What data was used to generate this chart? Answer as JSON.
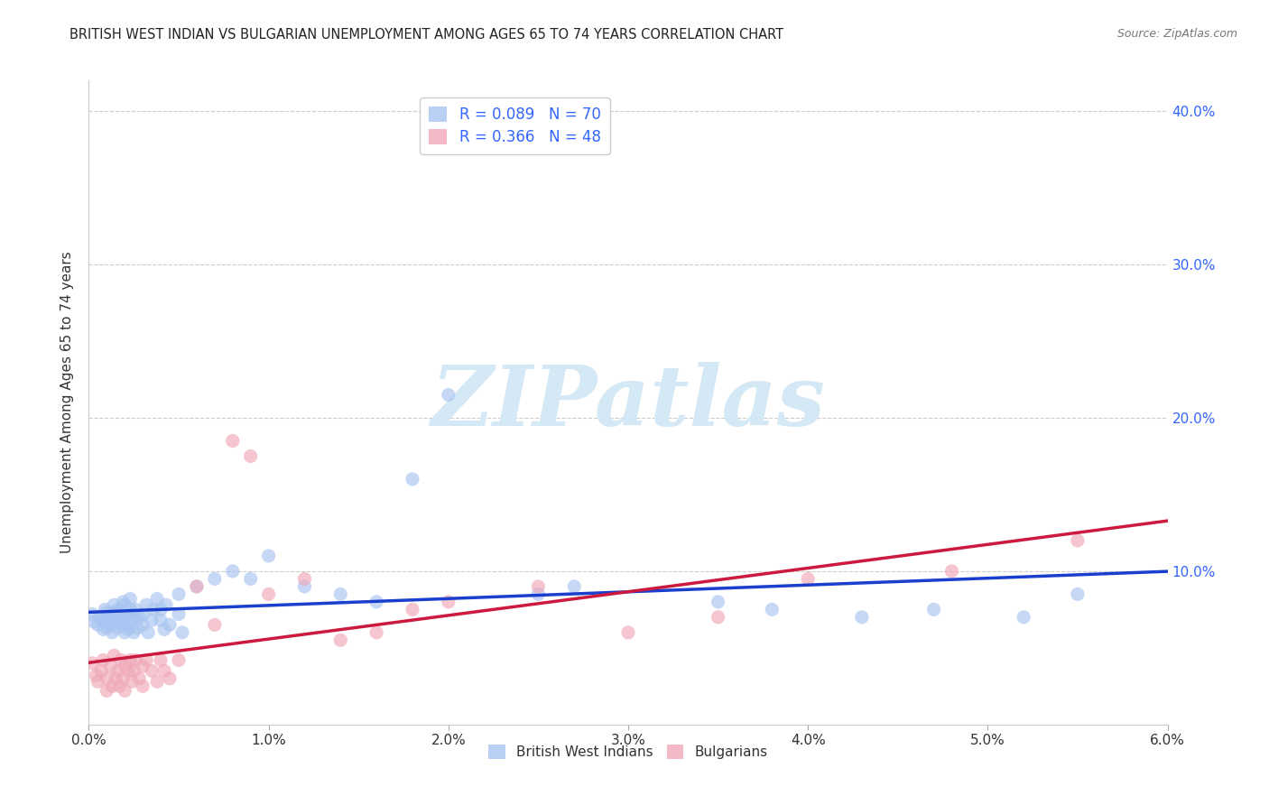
{
  "title": "BRITISH WEST INDIAN VS BULGARIAN UNEMPLOYMENT AMONG AGES 65 TO 74 YEARS CORRELATION CHART",
  "source": "Source: ZipAtlas.com",
  "ylabel": "Unemployment Among Ages 65 to 74 years",
  "xlim": [
    0.0,
    0.06
  ],
  "ylim": [
    0.0,
    0.42
  ],
  "x_ticks": [
    0.0,
    0.01,
    0.02,
    0.03,
    0.04,
    0.05,
    0.06
  ],
  "x_tick_labels": [
    "0.0%",
    "1.0%",
    "2.0%",
    "3.0%",
    "4.0%",
    "5.0%",
    "6.0%"
  ],
  "y_ticks_right": [
    0.1,
    0.2,
    0.3,
    0.4
  ],
  "y_tick_labels_right": [
    "10.0%",
    "20.0%",
    "30.0%",
    "40.0%"
  ],
  "r_bwi": 0.089,
  "n_bwi": 70,
  "r_bulg": 0.366,
  "n_bulg": 48,
  "bwi_color": "#a8c4f0",
  "bulg_color": "#f0a8b8",
  "bwi_line_color": "#1a3fcc",
  "bulg_line_color": "#cc1a3f",
  "watermark_text": "ZIPatlas",
  "watermark_color": "#d5e8f5",
  "bwi_scatter_x": [
    0.0002,
    0.0003,
    0.0005,
    0.0006,
    0.0008,
    0.0008,
    0.0009,
    0.001,
    0.001,
    0.001,
    0.0012,
    0.0012,
    0.0013,
    0.0014,
    0.0014,
    0.0015,
    0.0015,
    0.0016,
    0.0016,
    0.0017,
    0.0018,
    0.0018,
    0.0019,
    0.002,
    0.002,
    0.002,
    0.002,
    0.0022,
    0.0022,
    0.0023,
    0.0023,
    0.0024,
    0.0025,
    0.0025,
    0.0026,
    0.0027,
    0.0028,
    0.003,
    0.003,
    0.0032,
    0.0033,
    0.0035,
    0.0036,
    0.0038,
    0.004,
    0.004,
    0.0042,
    0.0043,
    0.0045,
    0.005,
    0.005,
    0.0052,
    0.006,
    0.007,
    0.008,
    0.009,
    0.01,
    0.012,
    0.014,
    0.016,
    0.018,
    0.02,
    0.025,
    0.027,
    0.035,
    0.038,
    0.043,
    0.047,
    0.052,
    0.055
  ],
  "bwi_scatter_y": [
    0.072,
    0.067,
    0.065,
    0.07,
    0.068,
    0.062,
    0.075,
    0.063,
    0.068,
    0.073,
    0.071,
    0.065,
    0.06,
    0.072,
    0.078,
    0.067,
    0.074,
    0.063,
    0.069,
    0.075,
    0.07,
    0.065,
    0.08,
    0.06,
    0.065,
    0.07,
    0.078,
    0.062,
    0.068,
    0.075,
    0.082,
    0.072,
    0.06,
    0.068,
    0.075,
    0.063,
    0.07,
    0.065,
    0.072,
    0.078,
    0.06,
    0.068,
    0.075,
    0.082,
    0.068,
    0.075,
    0.062,
    0.078,
    0.065,
    0.072,
    0.085,
    0.06,
    0.09,
    0.095,
    0.1,
    0.095,
    0.11,
    0.09,
    0.085,
    0.08,
    0.16,
    0.215,
    0.085,
    0.09,
    0.08,
    0.075,
    0.07,
    0.075,
    0.07,
    0.085
  ],
  "bulg_scatter_x": [
    0.0002,
    0.0004,
    0.0005,
    0.0007,
    0.0008,
    0.001,
    0.001,
    0.0012,
    0.0013,
    0.0014,
    0.0015,
    0.0016,
    0.0017,
    0.0018,
    0.0019,
    0.002,
    0.002,
    0.0022,
    0.0023,
    0.0024,
    0.0025,
    0.0026,
    0.0028,
    0.003,
    0.003,
    0.0032,
    0.0035,
    0.0038,
    0.004,
    0.0042,
    0.0045,
    0.005,
    0.006,
    0.007,
    0.008,
    0.009,
    0.01,
    0.012,
    0.014,
    0.016,
    0.018,
    0.02,
    0.025,
    0.03,
    0.035,
    0.04,
    0.048,
    0.055
  ],
  "bulg_scatter_y": [
    0.04,
    0.032,
    0.028,
    0.035,
    0.042,
    0.03,
    0.022,
    0.038,
    0.025,
    0.045,
    0.03,
    0.035,
    0.025,
    0.042,
    0.03,
    0.038,
    0.022,
    0.035,
    0.042,
    0.028,
    0.035,
    0.042,
    0.03,
    0.038,
    0.025,
    0.042,
    0.035,
    0.028,
    0.042,
    0.035,
    0.03,
    0.042,
    0.09,
    0.065,
    0.185,
    0.175,
    0.085,
    0.095,
    0.055,
    0.06,
    0.075,
    0.08,
    0.09,
    0.06,
    0.07,
    0.095,
    0.1,
    0.12
  ]
}
